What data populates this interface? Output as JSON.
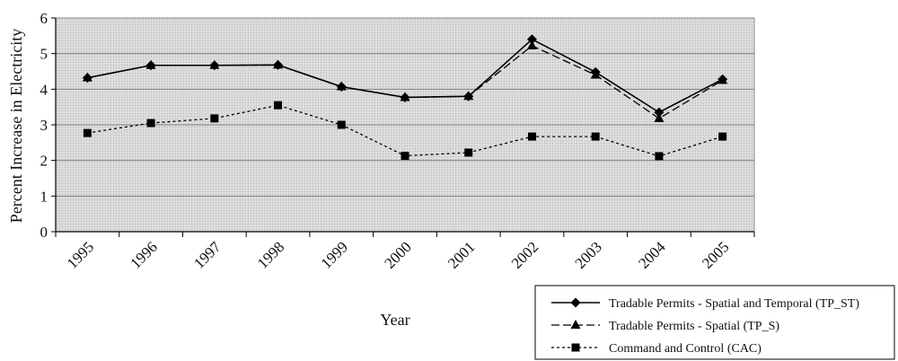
{
  "chart_data": {
    "type": "line",
    "title": "",
    "xlabel": "Year",
    "ylabel": "Percent Increase in Electricity",
    "ylim": [
      0,
      6
    ],
    "yticks": [
      "0",
      "1",
      "2",
      "3",
      "4",
      "5",
      "6"
    ],
    "categories": [
      "1995",
      "1996",
      "1997",
      "1998",
      "1999",
      "2000",
      "2001",
      "2002",
      "2003",
      "2004",
      "2005"
    ],
    "grid": true,
    "legend_position": "bottom-right",
    "series": [
      {
        "name": "Tradable Permits - Spatial and Temporal (TP_ST)",
        "marker": "diamond",
        "dash": "solid",
        "values": [
          4.32,
          4.67,
          4.67,
          4.68,
          4.07,
          3.77,
          3.8,
          5.4,
          4.48,
          3.35,
          4.28
        ]
      },
      {
        "name": "Tradable Permits - Spatial (TP_S)",
        "marker": "triangle",
        "dash": "dashed",
        "values": [
          4.32,
          4.67,
          4.67,
          4.68,
          4.07,
          3.77,
          3.8,
          5.22,
          4.4,
          3.18,
          4.25
        ]
      },
      {
        "name": "Command and Control (CAC)",
        "marker": "square",
        "dash": "dotted",
        "values": [
          2.77,
          3.05,
          3.18,
          3.55,
          3.0,
          2.13,
          2.22,
          2.67,
          2.67,
          2.12,
          2.67
        ]
      }
    ],
    "colors": {
      "plot_background": "#d9d9d9",
      "gridline": "#808080",
      "line": "#000000"
    }
  }
}
